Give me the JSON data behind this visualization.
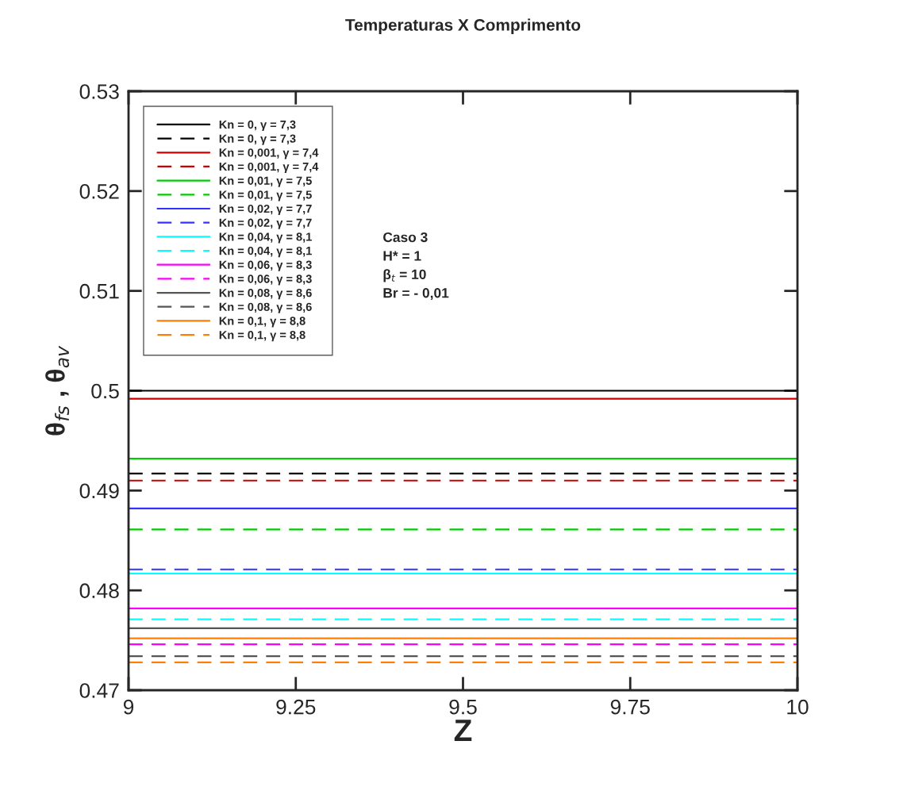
{
  "chart_data": {
    "type": "line",
    "title": "Temperaturas X Comprimento",
    "xlabel": "Z",
    "ylabel": "θ$_{fs}$ , θ$_{av}$",
    "xlim": [
      9,
      10
    ],
    "xticks": [
      9,
      9.25,
      9.5,
      9.75,
      10
    ],
    "ylim": [
      0.47,
      0.53
    ],
    "yticks": [
      0.47,
      0.48,
      0.49,
      0.5,
      0.51,
      0.52,
      0.53
    ],
    "grid": false,
    "legend": "top left",
    "marker": "none",
    "annotations": [
      "Caso 3",
      "H* = 1",
      "β$_{t}$ = 10",
      "Br = - 0,01"
    ],
    "x": [
      9,
      10
    ],
    "series": [
      {
        "name": "Kn = 0, γ = 7,3",
        "color": "#000000",
        "line_style": "solid",
        "values": [
          0.5,
          0.5
        ]
      },
      {
        "name": "Kn = 0, γ = 7,3",
        "color": "#000000",
        "line_style": "dashed",
        "values": [
          0.4917,
          0.4917
        ]
      },
      {
        "name": "Kn = 0,001, γ = 7,4",
        "color": "#cc0000",
        "line_style": "solid",
        "values": [
          0.4992,
          0.4992
        ]
      },
      {
        "name": "Kn = 0,001, γ = 7,4",
        "color": "#cc0000",
        "line_style": "dashed",
        "values": [
          0.491,
          0.491
        ]
      },
      {
        "name": "Kn = 0,01, γ = 7,5",
        "color": "#00cc00",
        "line_style": "solid",
        "values": [
          0.4932,
          0.4932
        ]
      },
      {
        "name": "Kn = 0,01, γ = 7,5",
        "color": "#00cc00",
        "line_style": "dashed",
        "values": [
          0.4861,
          0.4861
        ]
      },
      {
        "name": "Kn = 0,02, γ = 7,7",
        "color": "#3333ff",
        "line_style": "solid",
        "values": [
          0.4882,
          0.4882
        ]
      },
      {
        "name": "Kn = 0,02, γ = 7,7",
        "color": "#3333ff",
        "line_style": "dashed",
        "values": [
          0.4821,
          0.4821
        ]
      },
      {
        "name": "Kn = 0,04, γ = 8,1",
        "color": "#00ffff",
        "line_style": "solid",
        "values": [
          0.4817,
          0.4817
        ]
      },
      {
        "name": "Kn = 0,04, γ = 8,1",
        "color": "#00ffff",
        "line_style": "dashed",
        "values": [
          0.4771,
          0.4771
        ]
      },
      {
        "name": "Kn = 0,06, γ = 8,3",
        "color": "#ff00ff",
        "line_style": "solid",
        "values": [
          0.4782,
          0.4782
        ]
      },
      {
        "name": "Kn = 0,06, γ = 8,3",
        "color": "#ff00ff",
        "line_style": "dashed",
        "values": [
          0.4746,
          0.4746
        ]
      },
      {
        "name": "Kn = 0,08, γ = 8,6",
        "color": "#555555",
        "line_style": "solid",
        "values": [
          0.4762,
          0.4762
        ]
      },
      {
        "name": "Kn = 0,08, γ = 8,6",
        "color": "#555555",
        "line_style": "dashed",
        "values": [
          0.4734,
          0.4734
        ]
      },
      {
        "name": "Kn = 0,1, γ = 8,8",
        "color": "#ff8000",
        "line_style": "solid",
        "values": [
          0.4752,
          0.4752
        ]
      },
      {
        "name": "Kn = 0,1, γ = 8,8",
        "color": "#ff8000",
        "line_style": "dashed",
        "values": [
          0.4728,
          0.4728
        ]
      }
    ]
  }
}
